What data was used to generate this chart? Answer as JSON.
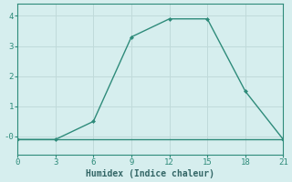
{
  "xlabel": "Humidex (Indice chaleur)",
  "bg_color": "#d6eeee",
  "line_color": "#2e8b7a",
  "grid_color": "#c0dada",
  "x_curve": [
    0,
    3,
    6,
    9,
    12,
    15,
    18,
    21
  ],
  "y_curve": [
    -0.1,
    -0.1,
    0.5,
    3.3,
    3.9,
    3.9,
    1.5,
    -0.1
  ],
  "x_flat": [
    0,
    3,
    6,
    9,
    12,
    15,
    18,
    21
  ],
  "y_flat": [
    -0.1,
    -0.1,
    -0.1,
    -0.1,
    -0.1,
    -0.1,
    -0.1,
    -0.1
  ],
  "xlim": [
    0,
    21
  ],
  "ylim": [
    -0.6,
    4.4
  ],
  "xticks": [
    0,
    3,
    6,
    9,
    12,
    15,
    18,
    21
  ],
  "yticks": [
    0,
    1,
    2,
    3,
    4
  ],
  "ytick_labels": [
    "-0",
    "1",
    "2",
    "3",
    "4"
  ]
}
